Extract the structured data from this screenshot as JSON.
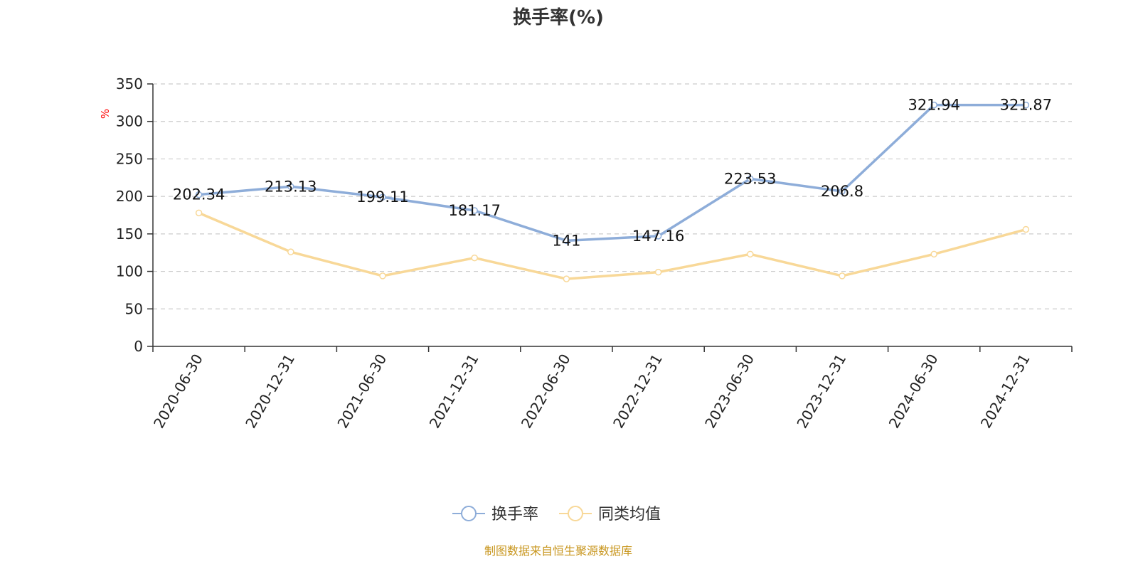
{
  "chart_data": {
    "type": "line",
    "title": "换手率(%)",
    "ylabel": "%",
    "xlabel": "",
    "ylim": [
      0,
      350
    ],
    "yticks": [
      0,
      50,
      100,
      150,
      200,
      250,
      300,
      350
    ],
    "grid": true,
    "legend_position": "bottom-center",
    "categories": [
      "2020-06-30",
      "2020-12-31",
      "2021-06-30",
      "2021-12-31",
      "2022-06-30",
      "2022-12-31",
      "2023-06-30",
      "2023-12-31",
      "2024-06-30",
      "2024-12-31"
    ],
    "series": [
      {
        "name": "换手率",
        "color": "#8eadd9",
        "values": [
          202.34,
          213.13,
          199.11,
          181.17,
          141,
          147.16,
          223.53,
          206.8,
          321.94,
          321.87
        ],
        "labels": [
          "202.34",
          "213.13",
          "199.11",
          "181.17",
          "141",
          "147.16",
          "223.53",
          "206.8",
          "321.94",
          "321.87"
        ],
        "show_labels": true
      },
      {
        "name": "同类均值",
        "color": "#f8d898",
        "values": [
          178,
          126,
          94,
          118,
          90,
          99,
          123,
          94,
          123,
          156
        ],
        "show_labels": false
      }
    ],
    "source": "制图数据来自恒生聚源数据库",
    "source_color": "#c8961e",
    "unit_color": "#ff0000",
    "axis_color": "#333333",
    "grid_color": "#cccccc"
  }
}
